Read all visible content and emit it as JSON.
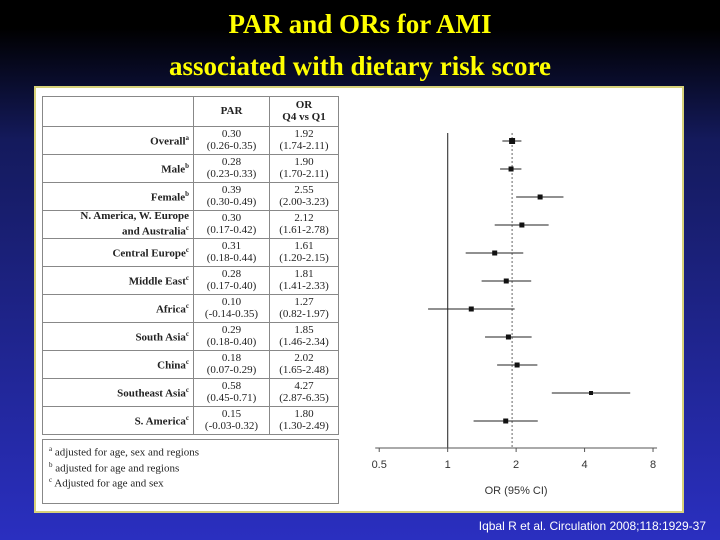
{
  "title_line1": "PAR and ORs for AMI",
  "title_line2": "associated with dietary risk score",
  "table": {
    "col_par": "PAR",
    "col_or_line1": "OR",
    "col_or_line2": "Q4 vs Q1"
  },
  "chart_data": {
    "type": "forest",
    "xlabel": "OR (95% CI)",
    "xscale": "log",
    "xlim": [
      0.42,
      9.5
    ],
    "xticks": [
      0.5,
      1,
      2,
      4,
      8
    ],
    "xtick_labels": [
      "0.5",
      "1",
      "2",
      "4",
      "8"
    ],
    "reference_lines": [
      1,
      1.92
    ],
    "rows": [
      {
        "label": "Overall",
        "sup": "a",
        "par": "0.30",
        "par_ci": "(0.26-0.35)",
        "or_text": "1.92",
        "or_ci_text": "(1.74-2.11)",
        "or": 1.92,
        "lo": 1.74,
        "hi": 2.11
      },
      {
        "label": "Male",
        "sup": "b",
        "par": "0.28",
        "par_ci": "(0.23-0.33)",
        "or_text": "1.90",
        "or_ci_text": "(1.70-2.11)",
        "or": 1.9,
        "lo": 1.7,
        "hi": 2.11
      },
      {
        "label": "Female",
        "sup": "b",
        "par": "0.39",
        "par_ci": "(0.30-0.49)",
        "or_text": "2.55",
        "or_ci_text": "(2.00-3.23)",
        "or": 2.55,
        "lo": 2.0,
        "hi": 3.23
      },
      {
        "label": "N. America, W. Europe",
        "label2": "and Australia",
        "sup": "c",
        "par": "0.30",
        "par_ci": "(0.17-0.42)",
        "or_text": "2.12",
        "or_ci_text": "(1.61-2.78)",
        "or": 2.12,
        "lo": 1.61,
        "hi": 2.78
      },
      {
        "label": "Central Europe",
        "sup": "c",
        "par": "0.31",
        "par_ci": "(0.18-0.44)",
        "or_text": "1.61",
        "or_ci_text": "(1.20-2.15)",
        "or": 1.61,
        "lo": 1.2,
        "hi": 2.15
      },
      {
        "label": "Middle East",
        "sup": "c",
        "par": "0.28",
        "par_ci": "(0.17-0.40)",
        "or_text": "1.81",
        "or_ci_text": "(1.41-2.33)",
        "or": 1.81,
        "lo": 1.41,
        "hi": 2.33
      },
      {
        "label": "Africa",
        "sup": "c",
        "par": "0.10",
        "par_ci": "(-0.14-0.35)",
        "or_text": "1.27",
        "or_ci_text": "(0.82-1.97)",
        "or": 1.27,
        "lo": 0.82,
        "hi": 1.97
      },
      {
        "label": "South Asia",
        "sup": "c",
        "par": "0.29",
        "par_ci": "(0.18-0.40)",
        "or_text": "1.85",
        "or_ci_text": "(1.46-2.34)",
        "or": 1.85,
        "lo": 1.46,
        "hi": 2.34
      },
      {
        "label": "China",
        "sup": "c",
        "par": "0.18",
        "par_ci": "(0.07-0.29)",
        "or_text": "2.02",
        "or_ci_text": "(1.65-2.48)",
        "or": 2.02,
        "lo": 1.65,
        "hi": 2.48
      },
      {
        "label": "Southeast Asia",
        "sup": "c",
        "par": "0.58",
        "par_ci": "(0.45-0.71)",
        "or_text": "4.27",
        "or_ci_text": "(2.87-6.35)",
        "or": 4.27,
        "lo": 2.87,
        "hi": 6.35
      },
      {
        "label": "S. America",
        "sup": "c",
        "par": "0.15",
        "par_ci": "(-0.03-0.32)",
        "or_text": "1.80",
        "or_ci_text": "(1.30-2.49)",
        "or": 1.8,
        "lo": 1.3,
        "hi": 2.49
      }
    ]
  },
  "footnotes": [
    {
      "sup": "a",
      "text": "adjusted for age, sex and regions"
    },
    {
      "sup": "b",
      "text": "adjusted for age and regions"
    },
    {
      "sup": "c",
      "text": "Adjusted for age and sex"
    }
  ],
  "citation": "Iqbal R et al. Circulation 2008;118:1929-37"
}
